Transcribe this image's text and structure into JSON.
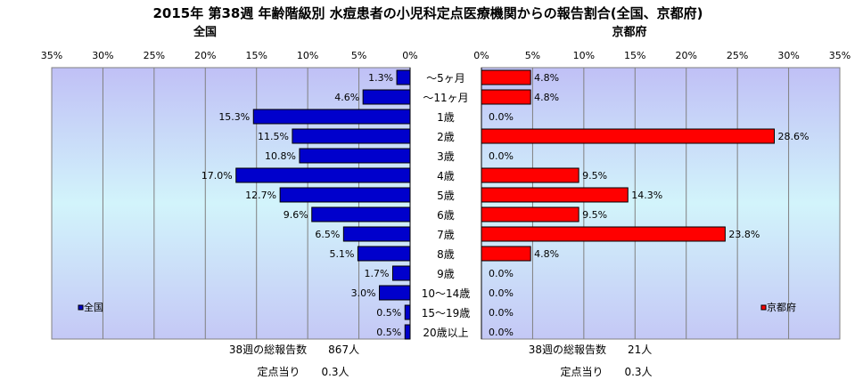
{
  "title": "2015年 第38週 年齢階級別 水痘患者の小児科定点医療機関からの報告割合(全国、京都府)",
  "chart_data": [
    {
      "type": "bar",
      "orientation": "horizontal",
      "direction": "right-to-left",
      "title": "全国",
      "categories": [
        "～5ヶ月",
        "～11ヶ月",
        "1歳",
        "2歳",
        "3歳",
        "4歳",
        "5歳",
        "6歳",
        "7歳",
        "8歳",
        "9歳",
        "10～14歳",
        "15～19歳",
        "20歳以上"
      ],
      "series": [
        {
          "name": "全国",
          "values": [
            1.3,
            4.6,
            15.3,
            11.5,
            10.8,
            17.0,
            12.7,
            9.6,
            6.5,
            5.1,
            1.7,
            3.0,
            0.5,
            0.5
          ]
        }
      ],
      "xlim": [
        0,
        35
      ],
      "ticks": [
        "35%",
        "30%",
        "25%",
        "20%",
        "15%",
        "10%",
        "5%",
        "0%"
      ],
      "grid": true,
      "legend_position": "bottom-left",
      "color": "#0000cc"
    },
    {
      "type": "bar",
      "orientation": "horizontal",
      "direction": "left-to-right",
      "title": "京都府",
      "categories": [
        "～5ヶ月",
        "～11ヶ月",
        "1歳",
        "2歳",
        "3歳",
        "4歳",
        "5歳",
        "6歳",
        "7歳",
        "8歳",
        "9歳",
        "10～14歳",
        "15～19歳",
        "20歳以上"
      ],
      "series": [
        {
          "name": "京都府",
          "values": [
            4.8,
            4.8,
            0.0,
            28.6,
            0.0,
            9.5,
            14.3,
            9.5,
            23.8,
            4.8,
            0.0,
            0.0,
            0.0,
            0.0
          ]
        }
      ],
      "xlim": [
        0,
        35
      ],
      "ticks": [
        "0%",
        "5%",
        "10%",
        "15%",
        "20%",
        "25%",
        "30%",
        "35%"
      ],
      "grid": true,
      "legend_position": "bottom-right",
      "color": "#ff0000"
    }
  ],
  "footer": {
    "left_reports": "38週の総報告数　　867人",
    "left_per": "定点当り　　0.3人",
    "right_reports": "38週の総報告数　　21人",
    "right_per": "定点当り　　0.3人"
  }
}
